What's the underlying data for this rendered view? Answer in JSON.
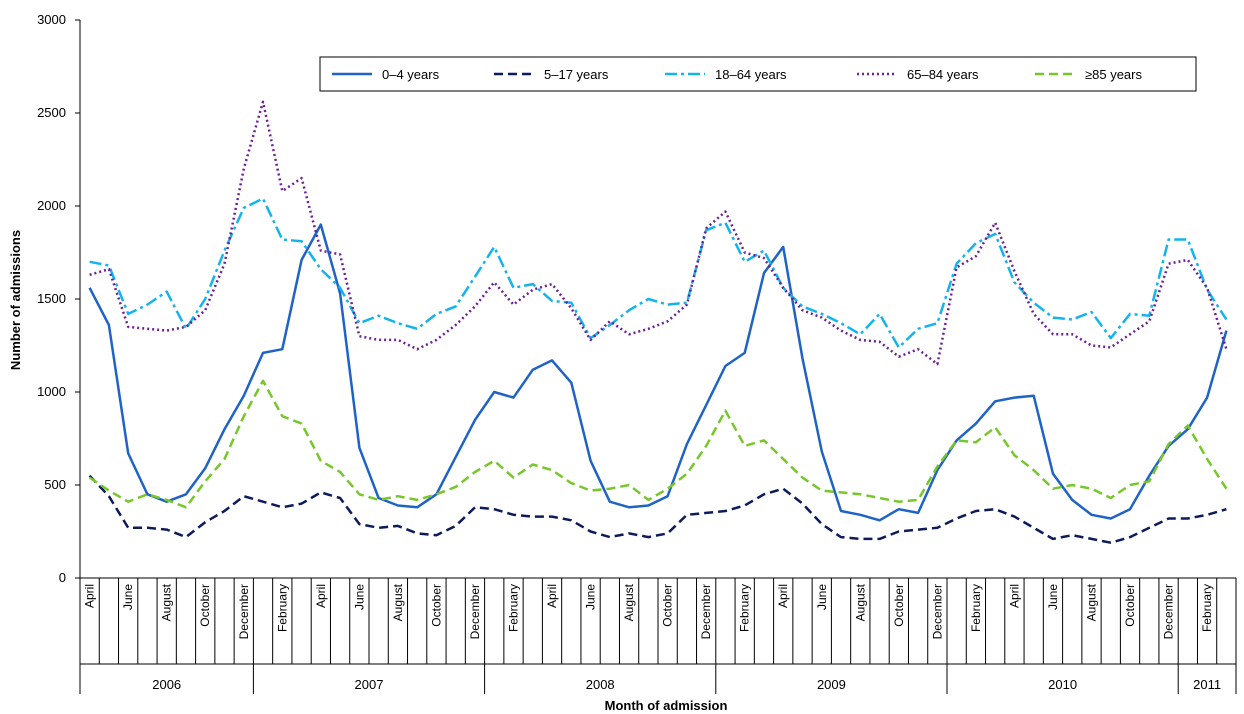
{
  "chart_data": {
    "type": "line",
    "xlabel": "Month of admission",
    "ylabel": "Number of admissions",
    "ylim": [
      0,
      3000
    ],
    "yticks": [
      0,
      500,
      1000,
      1500,
      2000,
      2500,
      3000
    ],
    "grid": false,
    "legend_position": "top",
    "x": [
      "2006-04",
      "2006-05",
      "2006-06",
      "2006-07",
      "2006-08",
      "2006-09",
      "2006-10",
      "2006-11",
      "2006-12",
      "2007-01",
      "2007-02",
      "2007-03",
      "2007-04",
      "2007-05",
      "2007-06",
      "2007-07",
      "2007-08",
      "2007-09",
      "2007-10",
      "2007-11",
      "2007-12",
      "2008-01",
      "2008-02",
      "2008-03",
      "2008-04",
      "2008-05",
      "2008-06",
      "2008-07",
      "2008-08",
      "2008-09",
      "2008-10",
      "2008-11",
      "2008-12",
      "2009-01",
      "2009-02",
      "2009-03",
      "2009-04",
      "2009-05",
      "2009-06",
      "2009-07",
      "2009-08",
      "2009-09",
      "2009-10",
      "2009-11",
      "2009-12",
      "2010-01",
      "2010-02",
      "2010-03",
      "2010-04",
      "2010-05",
      "2010-06",
      "2010-07",
      "2010-08",
      "2010-09",
      "2010-10",
      "2010-11",
      "2010-12",
      "2011-01",
      "2011-02",
      "2011-03"
    ],
    "month_tick_labels": [
      "April",
      "",
      "June",
      "",
      "August",
      "",
      "October",
      "",
      "December",
      "",
      "February",
      "",
      "April",
      "",
      "June",
      "",
      "August",
      "",
      "October",
      "",
      "December",
      "",
      "February",
      "",
      "April",
      "",
      "June",
      "",
      "August",
      "",
      "October",
      "",
      "December",
      "",
      "February",
      "",
      "April",
      "",
      "June",
      "",
      "August",
      "",
      "October",
      "",
      "December",
      "",
      "February",
      "",
      "April",
      "",
      "June",
      "",
      "August",
      "",
      "October",
      "",
      "December",
      "",
      "February",
      ""
    ],
    "year_groups": [
      {
        "label": "2006",
        "months": 9
      },
      {
        "label": "2007",
        "months": 12
      },
      {
        "label": "2008",
        "months": 12
      },
      {
        "label": "2009",
        "months": 12
      },
      {
        "label": "2010",
        "months": 12
      },
      {
        "label": "2011",
        "months": 3
      }
    ],
    "series": [
      {
        "name": "0–4 years",
        "color": "#1f63c6",
        "dash": "solid",
        "values": [
          1560,
          1360,
          670,
          450,
          410,
          450,
          590,
          800,
          980,
          1210,
          1230,
          1710,
          1900,
          1530,
          700,
          430,
          390,
          380,
          450,
          650,
          850,
          1000,
          970,
          1120,
          1170,
          1050,
          630,
          410,
          380,
          390,
          440,
          720,
          930,
          1140,
          1210,
          1640,
          1780,
          1180,
          680,
          360,
          340,
          310,
          370,
          350,
          580,
          740,
          830,
          950,
          970,
          980,
          560,
          420,
          340,
          320,
          370,
          550,
          710,
          800,
          970,
          1330
        ]
      },
      {
        "name": "5–17 years",
        "color": "#0e1b5a",
        "dash": "dash",
        "values": [
          550,
          440,
          270,
          270,
          260,
          220,
          300,
          360,
          440,
          410,
          380,
          400,
          460,
          430,
          290,
          270,
          280,
          240,
          230,
          280,
          380,
          370,
          340,
          330,
          330,
          310,
          250,
          220,
          240,
          220,
          240,
          340,
          350,
          360,
          390,
          450,
          480,
          400,
          290,
          220,
          210,
          210,
          250,
          260,
          270,
          320,
          360,
          370,
          330,
          270,
          210,
          230,
          210,
          190,
          220,
          270,
          320,
          320,
          340,
          370
        ]
      },
      {
        "name": "18–64 years",
        "color": "#13b4ee",
        "dash": "dashdot",
        "values": [
          1700,
          1680,
          1420,
          1470,
          1540,
          1340,
          1500,
          1760,
          1990,
          2040,
          1820,
          1810,
          1660,
          1560,
          1370,
          1410,
          1370,
          1340,
          1420,
          1460,
          1620,
          1780,
          1560,
          1580,
          1490,
          1480,
          1290,
          1360,
          1440,
          1500,
          1470,
          1480,
          1870,
          1910,
          1700,
          1760,
          1560,
          1460,
          1420,
          1370,
          1310,
          1420,
          1240,
          1340,
          1370,
          1690,
          1800,
          1850,
          1590,
          1480,
          1400,
          1390,
          1430,
          1290,
          1420,
          1410,
          1820,
          1820,
          1550,
          1390
        ]
      },
      {
        "name": "65–84 years",
        "color": "#6c1f9a",
        "dash": "dot",
        "values": [
          1630,
          1660,
          1350,
          1340,
          1330,
          1350,
          1440,
          1690,
          2200,
          2560,
          2080,
          2150,
          1760,
          1740,
          1300,
          1280,
          1280,
          1230,
          1280,
          1360,
          1460,
          1590,
          1470,
          1550,
          1580,
          1450,
          1280,
          1380,
          1310,
          1340,
          1380,
          1470,
          1880,
          1970,
          1750,
          1720,
          1560,
          1440,
          1400,
          1330,
          1280,
          1270,
          1190,
          1230,
          1150,
          1670,
          1730,
          1910,
          1650,
          1420,
          1310,
          1310,
          1250,
          1240,
          1310,
          1380,
          1690,
          1710,
          1560,
          1230
        ]
      },
      {
        "name": "≥85 years",
        "color": "#77c72a",
        "dash": "dash",
        "values": [
          540,
          470,
          410,
          450,
          420,
          380,
          520,
          640,
          870,
          1060,
          870,
          830,
          630,
          570,
          450,
          420,
          440,
          420,
          450,
          490,
          570,
          630,
          540,
          610,
          580,
          510,
          470,
          480,
          500,
          420,
          480,
          560,
          710,
          900,
          710,
          740,
          640,
          540,
          470,
          460,
          450,
          430,
          410,
          420,
          600,
          740,
          730,
          810,
          660,
          580,
          480,
          500,
          480,
          430,
          500,
          520,
          720,
          820,
          640,
          480
        ]
      }
    ]
  }
}
